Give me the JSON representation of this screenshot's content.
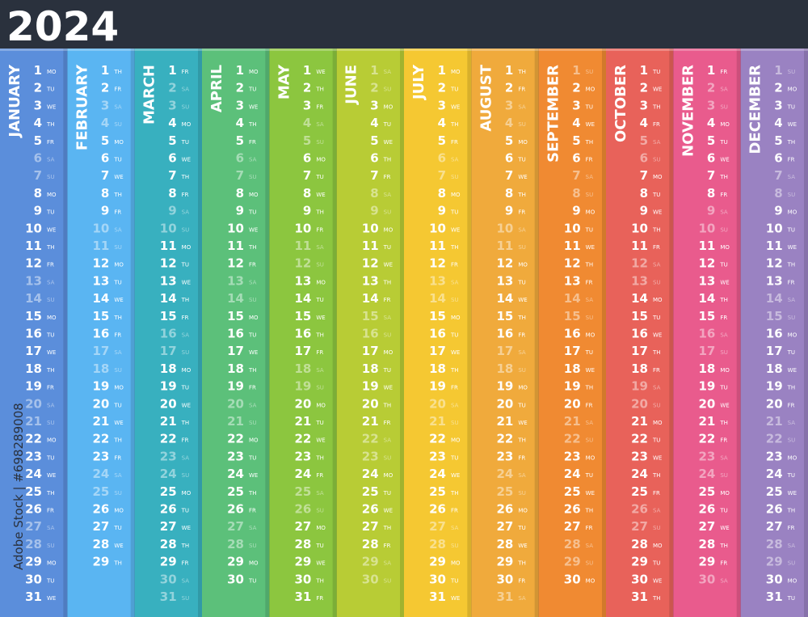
{
  "title": "2024",
  "credit": "Adobe Stock | #698289008",
  "muted_weekdays": [
    "SA",
    "SU"
  ],
  "months": [
    {
      "name": "JANUARY",
      "color": "#5b8edb",
      "days": [
        [
          1,
          "MO"
        ],
        [
          2,
          "TU"
        ],
        [
          3,
          "WE"
        ],
        [
          4,
          "TH"
        ],
        [
          5,
          "FR"
        ],
        [
          6,
          "SA"
        ],
        [
          7,
          "SU"
        ],
        [
          8,
          "MO"
        ],
        [
          9,
          "TU"
        ],
        [
          10,
          "WE"
        ],
        [
          11,
          "TH"
        ],
        [
          12,
          "FR"
        ],
        [
          13,
          "SA"
        ],
        [
          14,
          "SU"
        ],
        [
          15,
          "MO"
        ],
        [
          16,
          "TU"
        ],
        [
          17,
          "WE"
        ],
        [
          18,
          "TH"
        ],
        [
          19,
          "FR"
        ],
        [
          20,
          "SA"
        ],
        [
          21,
          "SU"
        ],
        [
          22,
          "MO"
        ],
        [
          23,
          "TU"
        ],
        [
          24,
          "WE"
        ],
        [
          25,
          "TH"
        ],
        [
          26,
          "FR"
        ],
        [
          27,
          "SA"
        ],
        [
          28,
          "SU"
        ],
        [
          29,
          "MO"
        ],
        [
          30,
          "TU"
        ],
        [
          31,
          "WE"
        ]
      ]
    },
    {
      "name": "FEBRUARY",
      "color": "#5ab5f2",
      "days": [
        [
          1,
          "TH"
        ],
        [
          2,
          "FR"
        ],
        [
          3,
          "SA"
        ],
        [
          4,
          "SU"
        ],
        [
          5,
          "MO"
        ],
        [
          6,
          "TU"
        ],
        [
          7,
          "WE"
        ],
        [
          8,
          "TH"
        ],
        [
          9,
          "FR"
        ],
        [
          10,
          "SA"
        ],
        [
          11,
          "SU"
        ],
        [
          12,
          "MO"
        ],
        [
          13,
          "TU"
        ],
        [
          14,
          "WE"
        ],
        [
          15,
          "TH"
        ],
        [
          16,
          "FR"
        ],
        [
          17,
          "SA"
        ],
        [
          18,
          "SU"
        ],
        [
          19,
          "MO"
        ],
        [
          20,
          "TU"
        ],
        [
          21,
          "WE"
        ],
        [
          22,
          "TH"
        ],
        [
          23,
          "FR"
        ],
        [
          24,
          "SA"
        ],
        [
          25,
          "SU"
        ],
        [
          26,
          "MO"
        ],
        [
          27,
          "TU"
        ],
        [
          28,
          "WE"
        ],
        [
          29,
          "TH"
        ]
      ]
    },
    {
      "name": "MARCH",
      "color": "#38b0bf",
      "days": [
        [
          1,
          "FR"
        ],
        [
          2,
          "SA"
        ],
        [
          3,
          "SU"
        ],
        [
          4,
          "MO"
        ],
        [
          5,
          "TU"
        ],
        [
          6,
          "WE"
        ],
        [
          7,
          "TH"
        ],
        [
          8,
          "FR"
        ],
        [
          9,
          "SA"
        ],
        [
          10,
          "SU"
        ],
        [
          11,
          "MO"
        ],
        [
          12,
          "TU"
        ],
        [
          13,
          "WE"
        ],
        [
          14,
          "TH"
        ],
        [
          15,
          "FR"
        ],
        [
          16,
          "SA"
        ],
        [
          17,
          "SU"
        ],
        [
          18,
          "MO"
        ],
        [
          19,
          "TU"
        ],
        [
          20,
          "WE"
        ],
        [
          21,
          "TH"
        ],
        [
          22,
          "FR"
        ],
        [
          23,
          "SA"
        ],
        [
          24,
          "SU"
        ],
        [
          25,
          "MO"
        ],
        [
          26,
          "TU"
        ],
        [
          27,
          "WE"
        ],
        [
          28,
          "TH"
        ],
        [
          29,
          "FR"
        ],
        [
          30,
          "SA"
        ],
        [
          31,
          "SU"
        ]
      ]
    },
    {
      "name": "APRIL",
      "color": "#5cc07a",
      "days": [
        [
          1,
          "MO"
        ],
        [
          2,
          "TU"
        ],
        [
          3,
          "WE"
        ],
        [
          4,
          "TH"
        ],
        [
          5,
          "FR"
        ],
        [
          6,
          "SA"
        ],
        [
          7,
          "SU"
        ],
        [
          8,
          "MO"
        ],
        [
          9,
          "TU"
        ],
        [
          10,
          "WE"
        ],
        [
          11,
          "TH"
        ],
        [
          12,
          "FR"
        ],
        [
          13,
          "SA"
        ],
        [
          14,
          "SU"
        ],
        [
          15,
          "MO"
        ],
        [
          16,
          "TU"
        ],
        [
          17,
          "WE"
        ],
        [
          18,
          "TH"
        ],
        [
          19,
          "FR"
        ],
        [
          20,
          "SA"
        ],
        [
          21,
          "SU"
        ],
        [
          22,
          "MO"
        ],
        [
          23,
          "TU"
        ],
        [
          24,
          "WE"
        ],
        [
          25,
          "TH"
        ],
        [
          26,
          "FR"
        ],
        [
          27,
          "SA"
        ],
        [
          28,
          "SU"
        ],
        [
          29,
          "MO"
        ],
        [
          30,
          "TU"
        ]
      ]
    },
    {
      "name": "MAY",
      "color": "#8cc63f",
      "days": [
        [
          1,
          "WE"
        ],
        [
          2,
          "TH"
        ],
        [
          3,
          "FR"
        ],
        [
          4,
          "SA"
        ],
        [
          5,
          "SU"
        ],
        [
          6,
          "MO"
        ],
        [
          7,
          "TU"
        ],
        [
          8,
          "WE"
        ],
        [
          9,
          "TH"
        ],
        [
          10,
          "FR"
        ],
        [
          11,
          "SA"
        ],
        [
          12,
          "SU"
        ],
        [
          13,
          "MO"
        ],
        [
          14,
          "TU"
        ],
        [
          15,
          "WE"
        ],
        [
          16,
          "TH"
        ],
        [
          17,
          "FR"
        ],
        [
          18,
          "SA"
        ],
        [
          19,
          "SU"
        ],
        [
          20,
          "MO"
        ],
        [
          21,
          "TU"
        ],
        [
          22,
          "WE"
        ],
        [
          23,
          "TH"
        ],
        [
          24,
          "FR"
        ],
        [
          25,
          "SA"
        ],
        [
          26,
          "SU"
        ],
        [
          27,
          "MO"
        ],
        [
          28,
          "TU"
        ],
        [
          29,
          "WE"
        ],
        [
          30,
          "TH"
        ],
        [
          31,
          "FR"
        ]
      ]
    },
    {
      "name": "JUNE",
      "color": "#b8cc35",
      "days": [
        [
          1,
          "SA"
        ],
        [
          2,
          "SU"
        ],
        [
          3,
          "MO"
        ],
        [
          4,
          "TU"
        ],
        [
          5,
          "WE"
        ],
        [
          6,
          "TH"
        ],
        [
          7,
          "FR"
        ],
        [
          8,
          "SA"
        ],
        [
          9,
          "SU"
        ],
        [
          10,
          "MO"
        ],
        [
          11,
          "TU"
        ],
        [
          12,
          "WE"
        ],
        [
          13,
          "TH"
        ],
        [
          14,
          "FR"
        ],
        [
          15,
          "SA"
        ],
        [
          16,
          "SU"
        ],
        [
          17,
          "MO"
        ],
        [
          18,
          "TU"
        ],
        [
          19,
          "WE"
        ],
        [
          20,
          "TH"
        ],
        [
          21,
          "FR"
        ],
        [
          22,
          "SA"
        ],
        [
          23,
          "SU"
        ],
        [
          24,
          "MO"
        ],
        [
          25,
          "TU"
        ],
        [
          26,
          "WE"
        ],
        [
          27,
          "TH"
        ],
        [
          28,
          "FR"
        ],
        [
          29,
          "SA"
        ],
        [
          30,
          "SU"
        ]
      ]
    },
    {
      "name": "JULY",
      "color": "#f5c832",
      "days": [
        [
          1,
          "MO"
        ],
        [
          2,
          "TU"
        ],
        [
          3,
          "WE"
        ],
        [
          4,
          "TH"
        ],
        [
          5,
          "FR"
        ],
        [
          6,
          "SA"
        ],
        [
          7,
          "SU"
        ],
        [
          8,
          "MO"
        ],
        [
          9,
          "TU"
        ],
        [
          10,
          "WE"
        ],
        [
          11,
          "TH"
        ],
        [
          12,
          "FR"
        ],
        [
          13,
          "SA"
        ],
        [
          14,
          "SU"
        ],
        [
          15,
          "MO"
        ],
        [
          16,
          "TU"
        ],
        [
          17,
          "WE"
        ],
        [
          18,
          "TH"
        ],
        [
          19,
          "FR"
        ],
        [
          20,
          "SA"
        ],
        [
          21,
          "SU"
        ],
        [
          22,
          "MO"
        ],
        [
          23,
          "TU"
        ],
        [
          24,
          "WE"
        ],
        [
          25,
          "TH"
        ],
        [
          26,
          "FR"
        ],
        [
          27,
          "SA"
        ],
        [
          28,
          "SU"
        ],
        [
          29,
          "MO"
        ],
        [
          30,
          "TU"
        ],
        [
          31,
          "WE"
        ]
      ]
    },
    {
      "name": "AUGUST",
      "color": "#f0aa3c",
      "days": [
        [
          1,
          "TH"
        ],
        [
          2,
          "FR"
        ],
        [
          3,
          "SA"
        ],
        [
          4,
          "SU"
        ],
        [
          5,
          "MO"
        ],
        [
          6,
          "TU"
        ],
        [
          7,
          "WE"
        ],
        [
          8,
          "TH"
        ],
        [
          9,
          "FR"
        ],
        [
          10,
          "SA"
        ],
        [
          11,
          "SU"
        ],
        [
          12,
          "MO"
        ],
        [
          13,
          "TU"
        ],
        [
          14,
          "WE"
        ],
        [
          15,
          "TH"
        ],
        [
          16,
          "FR"
        ],
        [
          17,
          "SA"
        ],
        [
          18,
          "SU"
        ],
        [
          19,
          "MO"
        ],
        [
          20,
          "TU"
        ],
        [
          21,
          "WE"
        ],
        [
          22,
          "TH"
        ],
        [
          23,
          "FR"
        ],
        [
          24,
          "SA"
        ],
        [
          25,
          "SU"
        ],
        [
          26,
          "MO"
        ],
        [
          27,
          "TU"
        ],
        [
          28,
          "WE"
        ],
        [
          29,
          "TH"
        ],
        [
          30,
          "FR"
        ],
        [
          31,
          "SA"
        ]
      ]
    },
    {
      "name": "SEPTEMBER",
      "color": "#f08a32",
      "days": [
        [
          1,
          "SU"
        ],
        [
          2,
          "MO"
        ],
        [
          3,
          "TU"
        ],
        [
          4,
          "WE"
        ],
        [
          5,
          "TH"
        ],
        [
          6,
          "FR"
        ],
        [
          7,
          "SA"
        ],
        [
          8,
          "SU"
        ],
        [
          9,
          "MO"
        ],
        [
          10,
          "TU"
        ],
        [
          11,
          "WE"
        ],
        [
          12,
          "TH"
        ],
        [
          13,
          "FR"
        ],
        [
          14,
          "SA"
        ],
        [
          15,
          "SU"
        ],
        [
          16,
          "MO"
        ],
        [
          17,
          "TU"
        ],
        [
          18,
          "WE"
        ],
        [
          19,
          "TH"
        ],
        [
          20,
          "FR"
        ],
        [
          21,
          "SA"
        ],
        [
          22,
          "SU"
        ],
        [
          23,
          "MO"
        ],
        [
          24,
          "TU"
        ],
        [
          25,
          "WE"
        ],
        [
          26,
          "TH"
        ],
        [
          27,
          "FR"
        ],
        [
          28,
          "SA"
        ],
        [
          29,
          "SU"
        ],
        [
          30,
          "MO"
        ]
      ]
    },
    {
      "name": "OCTOBER",
      "color": "#e8625a",
      "days": [
        [
          1,
          "TU"
        ],
        [
          2,
          "WE"
        ],
        [
          3,
          "TH"
        ],
        [
          4,
          "FR"
        ],
        [
          5,
          "SA"
        ],
        [
          6,
          "SU"
        ],
        [
          7,
          "MO"
        ],
        [
          8,
          "TU"
        ],
        [
          9,
          "WE"
        ],
        [
          10,
          "TH"
        ],
        [
          11,
          "FR"
        ],
        [
          12,
          "SA"
        ],
        [
          13,
          "SU"
        ],
        [
          14,
          "MO"
        ],
        [
          15,
          "TU"
        ],
        [
          16,
          "WE"
        ],
        [
          17,
          "TH"
        ],
        [
          18,
          "FR"
        ],
        [
          19,
          "SA"
        ],
        [
          20,
          "SU"
        ],
        [
          21,
          "MO"
        ],
        [
          22,
          "TU"
        ],
        [
          23,
          "WE"
        ],
        [
          24,
          "TH"
        ],
        [
          25,
          "FR"
        ],
        [
          26,
          "SA"
        ],
        [
          27,
          "SU"
        ],
        [
          28,
          "MO"
        ],
        [
          29,
          "TU"
        ],
        [
          30,
          "WE"
        ],
        [
          31,
          "TH"
        ]
      ]
    },
    {
      "name": "NOVEMBER",
      "color": "#e95b8d",
      "days": [
        [
          1,
          "FR"
        ],
        [
          2,
          "SA"
        ],
        [
          3,
          "SU"
        ],
        [
          4,
          "MO"
        ],
        [
          5,
          "TU"
        ],
        [
          6,
          "WE"
        ],
        [
          7,
          "TH"
        ],
        [
          8,
          "FR"
        ],
        [
          9,
          "SA"
        ],
        [
          10,
          "SU"
        ],
        [
          11,
          "MO"
        ],
        [
          12,
          "TU"
        ],
        [
          13,
          "WE"
        ],
        [
          14,
          "TH"
        ],
        [
          15,
          "FR"
        ],
        [
          16,
          "SA"
        ],
        [
          17,
          "SU"
        ],
        [
          18,
          "MO"
        ],
        [
          19,
          "TU"
        ],
        [
          20,
          "WE"
        ],
        [
          21,
          "TH"
        ],
        [
          22,
          "FR"
        ],
        [
          23,
          "SA"
        ],
        [
          24,
          "SU"
        ],
        [
          25,
          "MO"
        ],
        [
          26,
          "TU"
        ],
        [
          27,
          "WE"
        ],
        [
          28,
          "TH"
        ],
        [
          29,
          "FR"
        ],
        [
          30,
          "SA"
        ]
      ]
    },
    {
      "name": "DECEMBER",
      "color": "#9a82c2",
      "days": [
        [
          1,
          "SU"
        ],
        [
          2,
          "MO"
        ],
        [
          3,
          "TU"
        ],
        [
          4,
          "WE"
        ],
        [
          5,
          "TH"
        ],
        [
          6,
          "FR"
        ],
        [
          7,
          "SA"
        ],
        [
          8,
          "SU"
        ],
        [
          9,
          "MO"
        ],
        [
          10,
          "TU"
        ],
        [
          11,
          "WE"
        ],
        [
          12,
          "TH"
        ],
        [
          13,
          "FR"
        ],
        [
          14,
          "SA"
        ],
        [
          15,
          "SU"
        ],
        [
          16,
          "MO"
        ],
        [
          17,
          "TU"
        ],
        [
          18,
          "WE"
        ],
        [
          19,
          "TH"
        ],
        [
          20,
          "FR"
        ],
        [
          21,
          "SA"
        ],
        [
          22,
          "SU"
        ],
        [
          23,
          "MO"
        ],
        [
          24,
          "TU"
        ],
        [
          25,
          "WE"
        ],
        [
          26,
          "TH"
        ],
        [
          27,
          "FR"
        ],
        [
          28,
          "SA"
        ],
        [
          29,
          "SU"
        ],
        [
          30,
          "MO"
        ],
        [
          31,
          "TU"
        ]
      ]
    }
  ]
}
